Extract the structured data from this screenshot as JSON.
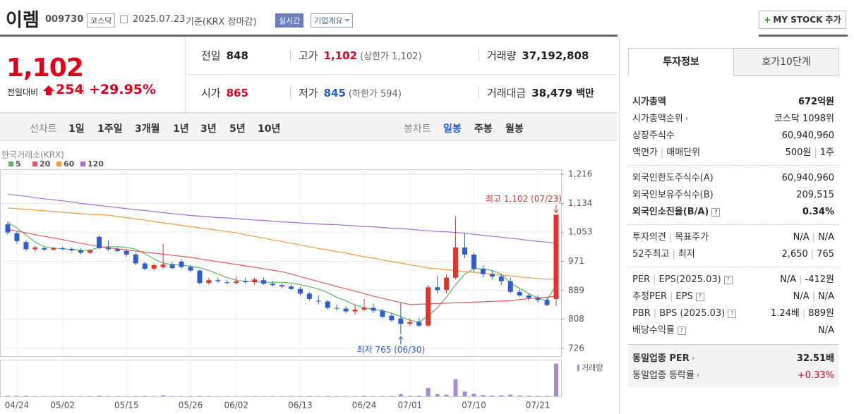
{
  "header": {
    "name": "이렘",
    "code": "009730",
    "market": "코스닥",
    "date": "2025.07.23",
    "basis": "기준(KRX 장마감)",
    "realtime": "실시간",
    "overview": "기업개요",
    "mystock": "MY STOCK 추가"
  },
  "price": {
    "current": "1,102",
    "change_label": "전일대비",
    "change": "254",
    "change_pct": "+29.95%",
    "color": "#e0001b"
  },
  "summary": [
    {
      "label": "전일",
      "value": "848",
      "color": "#222222"
    },
    {
      "label": "고가",
      "value": "1,102",
      "note": "(상한가 1,102)",
      "color": "#e0001b"
    },
    {
      "label": "거래량",
      "value": "37,192,808",
      "color": "#222222"
    },
    {
      "label": "시가",
      "value": "865",
      "color": "#e0001b"
    },
    {
      "label": "저가",
      "value": "845",
      "note": "(하한가 594)",
      "color": "#1d5fd6"
    },
    {
      "label": "거래대금",
      "value": "38,479",
      "unit": "백만",
      "color": "#222222"
    }
  ],
  "period_tabs": {
    "line_label": "선차트",
    "line": [
      "1일",
      "1주일",
      "3개월",
      "1년",
      "3년",
      "5년",
      "10년"
    ],
    "candle_label": "봉차트",
    "candle": [
      "일봉",
      "주봉",
      "월봉"
    ],
    "active_candle": 0
  },
  "chart_data": {
    "type": "candlestick",
    "source": "한국거래소(KRX)",
    "categories": [
      null,
      "04/24",
      null,
      null,
      null,
      null,
      "05/02",
      null,
      null,
      null,
      null,
      null,
      null,
      "05/15",
      null,
      null,
      null,
      null,
      null,
      null,
      "05/26",
      null,
      null,
      null,
      null,
      "06/02",
      null,
      null,
      null,
      null,
      null,
      null,
      "06/13",
      null,
      null,
      null,
      null,
      null,
      null,
      "06/24",
      null,
      null,
      null,
      null,
      "07/01",
      null,
      null,
      null,
      null,
      null,
      null,
      "07/10",
      null,
      null,
      null,
      null,
      null,
      null,
      "07/21",
      null,
      null
    ],
    "open": [
      1075,
      1050,
      1025,
      1005,
      1008,
      1004,
      1008,
      1006,
      1002,
      995,
      1040,
      1010,
      1005,
      1000,
      990,
      965,
      950,
      955,
      962,
      970,
      955,
      945,
      910,
      918,
      912,
      910,
      915,
      912,
      918,
      908,
      904,
      900,
      893,
      880,
      860,
      858,
      840,
      838,
      830,
      835,
      840,
      832,
      818,
      810,
      795,
      800,
      790,
      898,
      890,
      925,
      1010,
      990,
      950,
      935,
      928,
      915,
      885,
      875,
      868,
      862,
      865
    ],
    "high": [
      1082,
      1055,
      1030,
      1015,
      1012,
      1012,
      1012,
      1010,
      1008,
      1005,
      1045,
      1030,
      1010,
      1005,
      995,
      970,
      965,
      1020,
      968,
      978,
      960,
      948,
      925,
      925,
      918,
      928,
      925,
      925,
      925,
      915,
      910,
      905,
      900,
      885,
      875,
      862,
      850,
      845,
      850,
      865,
      852,
      838,
      825,
      855,
      810,
      812,
      905,
      930,
      935,
      1098,
      1050,
      995,
      960,
      945,
      935,
      925,
      892,
      880,
      875,
      870,
      1102
    ],
    "low": [
      1045,
      1020,
      1000,
      998,
      1000,
      1000,
      1002,
      998,
      990,
      992,
      1005,
      1000,
      998,
      985,
      960,
      945,
      945,
      950,
      948,
      950,
      940,
      905,
      905,
      910,
      906,
      906,
      908,
      905,
      905,
      900,
      895,
      890,
      875,
      860,
      850,
      835,
      832,
      825,
      820,
      830,
      825,
      810,
      800,
      765,
      790,
      785,
      785,
      880,
      880,
      920,
      980,
      940,
      925,
      920,
      905,
      880,
      870,
      860,
      855,
      845,
      845
    ],
    "close": [
      1052,
      1028,
      1005,
      1010,
      1004,
      1008,
      1006,
      1002,
      995,
      1002,
      1008,
      1005,
      1000,
      990,
      965,
      950,
      960,
      962,
      952,
      955,
      945,
      910,
      918,
      915,
      910,
      915,
      912,
      920,
      908,
      904,
      900,
      893,
      880,
      865,
      858,
      840,
      838,
      830,
      835,
      840,
      832,
      815,
      805,
      795,
      800,
      790,
      898,
      890,
      925,
      1010,
      990,
      950,
      935,
      928,
      915,
      885,
      875,
      868,
      862,
      848,
      1102
    ],
    "up_color": "#e5322d",
    "down_color": "#2f5bd3",
    "series": [
      {
        "name": "5",
        "color": "#5cb85c",
        "values": [
          1081,
          1065,
          1045,
          1025,
          1012,
          1008,
          1006,
          1004,
          1002,
          1002,
          1010,
          1012,
          1012,
          1010,
          1005,
          992,
          978,
          966,
          962,
          960,
          957,
          953,
          945,
          935,
          925,
          918,
          915,
          913,
          912,
          912,
          912,
          910,
          905,
          900,
          893,
          883,
          870,
          860,
          848,
          840,
          836,
          832,
          825,
          815,
          805,
          800,
          818,
          840,
          870,
          905,
          935,
          950,
          950,
          945,
          935,
          910,
          895,
          880,
          868,
          860,
          905
        ]
      },
      {
        "name": "20",
        "color": "#e55a5a",
        "values": [
          1061,
          1056,
          1051,
          1046,
          1041,
          1037,
          1032,
          1027,
          1022,
          1017,
          1012,
          1009,
          1006,
          1003,
          1000,
          997,
          994,
          991,
          988,
          985,
          982,
          978,
          974,
          970,
          966,
          962,
          958,
          954,
          950,
          946,
          942,
          935,
          928,
          921,
          914,
          907,
          900,
          894,
          887,
          880,
          873,
          867,
          861,
          855,
          849,
          850,
          851,
          852,
          853,
          854,
          855,
          856,
          857,
          858,
          859,
          860,
          863,
          866,
          868,
          870,
          873
        ]
      },
      {
        "name": "60",
        "color": "#f39a3c",
        "values": [
          1121,
          1119,
          1117,
          1115,
          1113,
          1111,
          1109,
          1107,
          1105,
          1103,
          1102,
          1101,
          1097,
          1094,
          1090,
          1087,
          1083,
          1079,
          1076,
          1072,
          1069,
          1065,
          1062,
          1058,
          1055,
          1051,
          1046,
          1041,
          1036,
          1031,
          1027,
          1022,
          1017,
          1012,
          1007,
          1003,
          998,
          994,
          989,
          984,
          980,
          975,
          970,
          966,
          961,
          957,
          952,
          950,
          947,
          945,
          942,
          940,
          937,
          935,
          932,
          930,
          927,
          925,
          922,
          921,
          920
        ]
      },
      {
        "name": "120",
        "color": "#a66bd6",
        "values": [
          1160,
          1157,
          1154,
          1150,
          1147,
          1144,
          1141,
          1138,
          1134,
          1131,
          1128,
          1125,
          1122,
          1119,
          1116,
          1114,
          1111,
          1108,
          1105,
          1103,
          1100,
          1098,
          1096,
          1094,
          1093,
          1091,
          1089,
          1087,
          1086,
          1084,
          1082,
          1081,
          1079,
          1078,
          1076,
          1075,
          1074,
          1072,
          1071,
          1069,
          1068,
          1066,
          1064,
          1063,
          1061,
          1059,
          1057,
          1055,
          1054,
          1052,
          1050,
          1047,
          1044,
          1041,
          1039,
          1036,
          1033,
          1030,
          1027,
          1025,
          1022
        ]
      }
    ],
    "ylim": [
      704,
      1230
    ],
    "yticks": [
      {
        "value": 1216,
        "label": "1,216"
      },
      {
        "value": 1134,
        "label": "1,134"
      },
      {
        "value": 1053,
        "label": "1,053"
      },
      971,
      889,
      808,
      726
    ],
    "grid": true,
    "max_label": "최고 1,102 (07/23)",
    "min_label": "최저 765 (06/30)",
    "volume": {
      "label": "거래량",
      "color": "#a98ad8",
      "ylim": [
        0,
        40000000
      ],
      "values": [
        900000,
        700000,
        800000,
        400000,
        300000,
        300000,
        300000,
        300000,
        400000,
        400000,
        900000,
        500000,
        300000,
        300000,
        500000,
        600000,
        400000,
        1200000,
        400000,
        500000,
        400000,
        700000,
        400000,
        300000,
        300000,
        300000,
        300000,
        300000,
        300000,
        300000,
        300000,
        300000,
        500000,
        600000,
        400000,
        600000,
        400000,
        400000,
        500000,
        700000,
        400000,
        600000,
        700000,
        2500000,
        700000,
        800000,
        9500000,
        2500000,
        2000000,
        19500000,
        5500000,
        3000000,
        1500000,
        1000000,
        1200000,
        2000000,
        1000000,
        800000,
        700000,
        600000,
        37192808
      ]
    }
  },
  "side_panel": {
    "tabs": [
      "투자정보",
      "호가10단계"
    ],
    "groups": [
      {
        "rows": [
          {
            "label": [
              "시가총액"
            ],
            "value": [
              "672억원"
            ],
            "bold": true
          },
          {
            "label": [
              "시가총액순위"
            ],
            "icon": "more",
            "value": [
              "코스닥 1098위"
            ]
          },
          {
            "label": [
              "상장주식수"
            ],
            "value": [
              "60,940,960"
            ]
          },
          {
            "label": [
              "액면가",
              "매매단위"
            ],
            "value": [
              "500원",
              "1주"
            ]
          }
        ]
      },
      {
        "rows": [
          {
            "label": [
              "외국인한도주식수(A)"
            ],
            "value": [
              "60,940,960"
            ]
          },
          {
            "label": [
              "외국인보유주식수(B)"
            ],
            "value": [
              "209,515"
            ]
          },
          {
            "label": [
              "외국인소진율(B/A)"
            ],
            "icon": "help",
            "value": [
              "0.34%"
            ],
            "bold": true
          }
        ]
      },
      {
        "rows": [
          {
            "label": [
              "투자의견",
              "목표주가"
            ],
            "value": [
              "N/A",
              "N/A"
            ]
          },
          {
            "label": [
              "52주최고",
              "최저"
            ],
            "value": [
              "2,650",
              "765"
            ]
          }
        ]
      },
      {
        "rows": [
          {
            "label": [
              "PER",
              "EPS(2025.03)"
            ],
            "icon": "help",
            "value": [
              "N/A",
              "-412원"
            ]
          },
          {
            "label": [
              "추정PER",
              "EPS"
            ],
            "icon": "help",
            "value": [
              "N/A",
              "N/A"
            ]
          },
          {
            "label": [
              "PBR",
              "BPS (2025.03)"
            ],
            "icon": "help",
            "value": [
              "1.24배",
              "889원"
            ]
          },
          {
            "label": [
              "배당수익률"
            ],
            "icon": "help",
            "value": [
              "N/A"
            ]
          }
        ]
      },
      {
        "shaded": true,
        "rows": [
          {
            "label": [
              "동일업종 PER"
            ],
            "icon": "more",
            "value": [
              "32.51배"
            ],
            "bold": true
          },
          {
            "label": [
              "동일업종 등락률"
            ],
            "icon": "more",
            "value": [
              "+0.33%"
            ],
            "color": "#e0001b"
          }
        ]
      }
    ]
  }
}
